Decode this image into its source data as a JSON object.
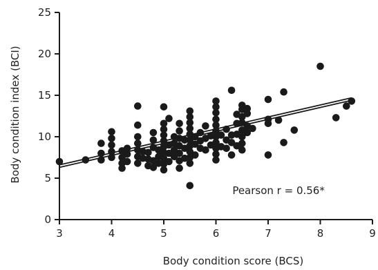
{
  "chart_data": {
    "type": "scatter",
    "title": "",
    "xlabel": "Body condition score (BCS)",
    "ylabel": "Body condition index (BCI)",
    "xlim": [
      3,
      9
    ],
    "ylim": [
      0,
      25
    ],
    "xticks": [
      "3",
      "4",
      "5",
      "6",
      "7",
      "8",
      "9"
    ],
    "yticks": [
      "0",
      "5",
      "10",
      "15",
      "20",
      "25"
    ],
    "grid": false,
    "legend": "none",
    "annotation": "Pearson r = 0.56*",
    "colors": {
      "points": "#1a1a1a",
      "lines": "#1a1a1a",
      "axes": "#1a1a1a"
    },
    "regression_lines": [
      {
        "x": [
          3,
          8.6
        ],
        "y": [
          6.6,
          14.7
        ]
      },
      {
        "x": [
          3,
          8.6
        ],
        "y": [
          6.3,
          14.4
        ]
      }
    ],
    "points": [
      [
        3.0,
        7.0
      ],
      [
        3.5,
        7.2
      ],
      [
        3.8,
        7.2
      ],
      [
        3.8,
        8.0
      ],
      [
        3.8,
        9.2
      ],
      [
        4.0,
        7.5
      ],
      [
        4.0,
        8.2
      ],
      [
        4.0,
        9.0
      ],
      [
        4.0,
        9.8
      ],
      [
        4.0,
        10.6
      ],
      [
        4.2,
        6.2
      ],
      [
        4.2,
        6.8
      ],
      [
        4.2,
        7.5
      ],
      [
        4.2,
        8.3
      ],
      [
        4.3,
        7.0
      ],
      [
        4.3,
        7.9
      ],
      [
        4.3,
        8.6
      ],
      [
        4.5,
        6.8
      ],
      [
        4.5,
        7.6
      ],
      [
        4.5,
        8.4
      ],
      [
        4.5,
        9.2
      ],
      [
        4.5,
        10.0
      ],
      [
        4.5,
        11.4
      ],
      [
        4.5,
        13.7
      ],
      [
        4.6,
        7.4
      ],
      [
        4.6,
        8.2
      ],
      [
        4.7,
        6.5
      ],
      [
        4.7,
        7.3
      ],
      [
        4.7,
        8.1
      ],
      [
        4.8,
        6.3
      ],
      [
        4.8,
        7.1
      ],
      [
        4.8,
        8.7
      ],
      [
        4.8,
        9.6
      ],
      [
        4.8,
        10.5
      ],
      [
        4.9,
        6.8
      ],
      [
        4.9,
        7.6
      ],
      [
        4.9,
        8.4
      ],
      [
        5.0,
        6.0
      ],
      [
        5.0,
        6.7
      ],
      [
        5.0,
        7.4
      ],
      [
        5.0,
        8.1
      ],
      [
        5.0,
        8.8
      ],
      [
        5.0,
        9.5
      ],
      [
        5.0,
        10.2
      ],
      [
        5.0,
        10.9
      ],
      [
        5.0,
        11.6
      ],
      [
        5.0,
        13.6
      ],
      [
        5.1,
        7.0
      ],
      [
        5.1,
        8.0
      ],
      [
        5.1,
        9.0
      ],
      [
        5.1,
        12.2
      ],
      [
        5.2,
        7.6
      ],
      [
        5.2,
        8.4
      ],
      [
        5.2,
        9.2
      ],
      [
        5.2,
        10.0
      ],
      [
        5.3,
        6.2
      ],
      [
        5.3,
        7.1
      ],
      [
        5.3,
        8.0
      ],
      [
        5.3,
        8.9
      ],
      [
        5.3,
        9.8
      ],
      [
        5.3,
        10.7
      ],
      [
        5.3,
        11.6
      ],
      [
        5.4,
        7.4
      ],
      [
        5.4,
        8.6
      ],
      [
        5.4,
        9.6
      ],
      [
        5.5,
        4.1
      ],
      [
        5.5,
        6.8
      ],
      [
        5.5,
        7.5
      ],
      [
        5.5,
        8.2
      ],
      [
        5.5,
        8.9
      ],
      [
        5.5,
        9.6
      ],
      [
        5.5,
        10.3
      ],
      [
        5.5,
        11.0
      ],
      [
        5.5,
        11.7
      ],
      [
        5.5,
        12.4
      ],
      [
        5.5,
        13.1
      ],
      [
        5.6,
        7.8
      ],
      [
        5.6,
        9.1
      ],
      [
        5.6,
        10.0
      ],
      [
        5.7,
        8.6
      ],
      [
        5.7,
        9.5
      ],
      [
        5.7,
        10.5
      ],
      [
        5.8,
        8.4
      ],
      [
        5.8,
        9.8
      ],
      [
        5.8,
        11.3
      ],
      [
        5.9,
        9.0
      ],
      [
        5.9,
        10.1
      ],
      [
        6.0,
        7.2
      ],
      [
        6.0,
        7.9
      ],
      [
        6.0,
        8.6
      ],
      [
        6.0,
        9.3
      ],
      [
        6.0,
        10.0
      ],
      [
        6.0,
        10.7
      ],
      [
        6.0,
        11.4
      ],
      [
        6.0,
        12.1
      ],
      [
        6.0,
        12.9
      ],
      [
        6.0,
        13.6
      ],
      [
        6.0,
        14.3
      ],
      [
        6.1,
        8.8
      ],
      [
        6.1,
        10.2
      ],
      [
        6.2,
        8.6
      ],
      [
        6.2,
        9.6
      ],
      [
        6.2,
        10.9
      ],
      [
        6.3,
        7.8
      ],
      [
        6.3,
        9.3
      ],
      [
        6.3,
        10.2
      ],
      [
        6.3,
        15.6
      ],
      [
        6.4,
        8.9
      ],
      [
        6.4,
        10.3
      ],
      [
        6.4,
        11.6
      ],
      [
        6.4,
        12.7
      ],
      [
        6.5,
        8.4
      ],
      [
        6.5,
        9.2
      ],
      [
        6.5,
        10.0
      ],
      [
        6.5,
        10.8
      ],
      [
        6.5,
        11.7
      ],
      [
        6.5,
        12.4
      ],
      [
        6.5,
        13.3
      ],
      [
        6.5,
        13.8
      ],
      [
        6.6,
        10.5
      ],
      [
        6.6,
        11.3
      ],
      [
        6.6,
        12.8
      ],
      [
        6.6,
        13.4
      ],
      [
        6.7,
        11.0
      ],
      [
        7.0,
        7.8
      ],
      [
        7.0,
        11.6
      ],
      [
        7.0,
        12.1
      ],
      [
        7.0,
        14.5
      ],
      [
        7.2,
        12.0
      ],
      [
        7.3,
        9.3
      ],
      [
        7.3,
        15.4
      ],
      [
        7.5,
        10.8
      ],
      [
        8.0,
        18.5
      ],
      [
        8.3,
        12.3
      ],
      [
        8.5,
        13.7
      ],
      [
        8.6,
        14.3
      ]
    ]
  }
}
